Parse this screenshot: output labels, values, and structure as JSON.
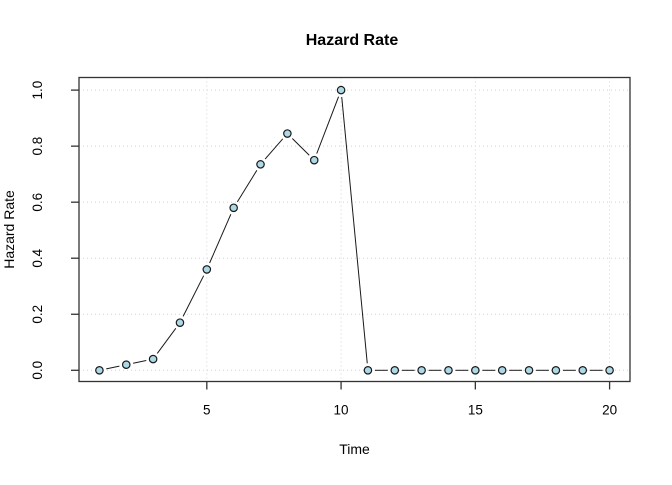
{
  "figure": {
    "background": "#FFFFFF"
  },
  "chart_data": {
    "type": "line",
    "title": "Hazard Rate",
    "xlabel": "Time",
    "ylabel": "Hazard Rate",
    "x": [
      1,
      2,
      3,
      4,
      5,
      6,
      7,
      8,
      9,
      10,
      11,
      12,
      13,
      14,
      15,
      16,
      17,
      18,
      19,
      20
    ],
    "y": [
      0.0,
      0.02,
      0.04,
      0.17,
      0.36,
      0.58,
      0.735,
      0.845,
      0.75,
      1.0,
      0.0,
      0.0,
      0.0,
      0.0,
      0.0,
      0.0,
      0.0,
      0.0,
      0.0,
      0.0
    ],
    "xlim": [
      0.24,
      20.76
    ],
    "ylim": [
      -0.04,
      1.045
    ],
    "xticks": {
      "values": [
        5,
        10,
        15,
        20
      ],
      "labels": [
        "5",
        "10",
        "15",
        "20"
      ]
    },
    "yticks": {
      "values": [
        0.0,
        0.2,
        0.4,
        0.6,
        0.8,
        1.0
      ],
      "labels": [
        "0.0",
        "0.2",
        "0.4",
        "0.6",
        "0.8",
        "1.0"
      ]
    },
    "grid": true,
    "grid_style": "dotted",
    "marker_shape": "circle",
    "line_between_points_with_gaps": true,
    "style": {
      "marker_fill": "#ADD8E6",
      "marker_stroke": "#1A1A1A",
      "line_color": "#1A1A1A",
      "grid_color": "#D3D3D3",
      "axis_color": "#333333",
      "text_color": "#000000",
      "background": "#FFFFFF"
    }
  }
}
